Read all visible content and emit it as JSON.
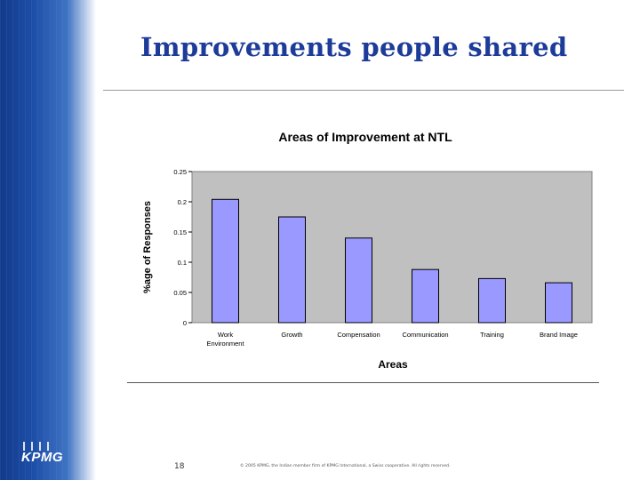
{
  "slide": {
    "title": "Improvements people shared",
    "page_number": "18",
    "copyright": "© 2005 KPMG, the Indian member firm of KPMG International, a Swiss cooperative. All rights reserved.",
    "logo_text": "KPMG"
  },
  "colors": {
    "title": "#1d3c9a",
    "bar_fill": "#9999ff",
    "bar_stroke": "#000000",
    "plot_background": "#c0c0c0"
  },
  "chart_data": {
    "type": "bar",
    "title": "Areas of Improvement at NTL",
    "xlabel": "Areas",
    "ylabel": "%age of Responses",
    "categories": [
      "Work Environment",
      "Growth",
      "Compensation",
      "Communication",
      "Training",
      "Brand Image"
    ],
    "category_lines": [
      [
        "Work",
        "Environment"
      ],
      [
        "Growth"
      ],
      [
        "Compensation"
      ],
      [
        "Communication"
      ],
      [
        "Training"
      ],
      [
        "Brand Image"
      ]
    ],
    "values": [
      0.204,
      0.175,
      0.14,
      0.088,
      0.073,
      0.066
    ],
    "ylim": [
      0,
      0.25
    ],
    "yticks": [
      0,
      0.05,
      0.1,
      0.15,
      0.2,
      0.25
    ],
    "ytick_labels": [
      "0",
      "0.05",
      "0.1",
      "0.15",
      "0.2",
      "0.25"
    ],
    "grid": false,
    "legend": "none"
  }
}
